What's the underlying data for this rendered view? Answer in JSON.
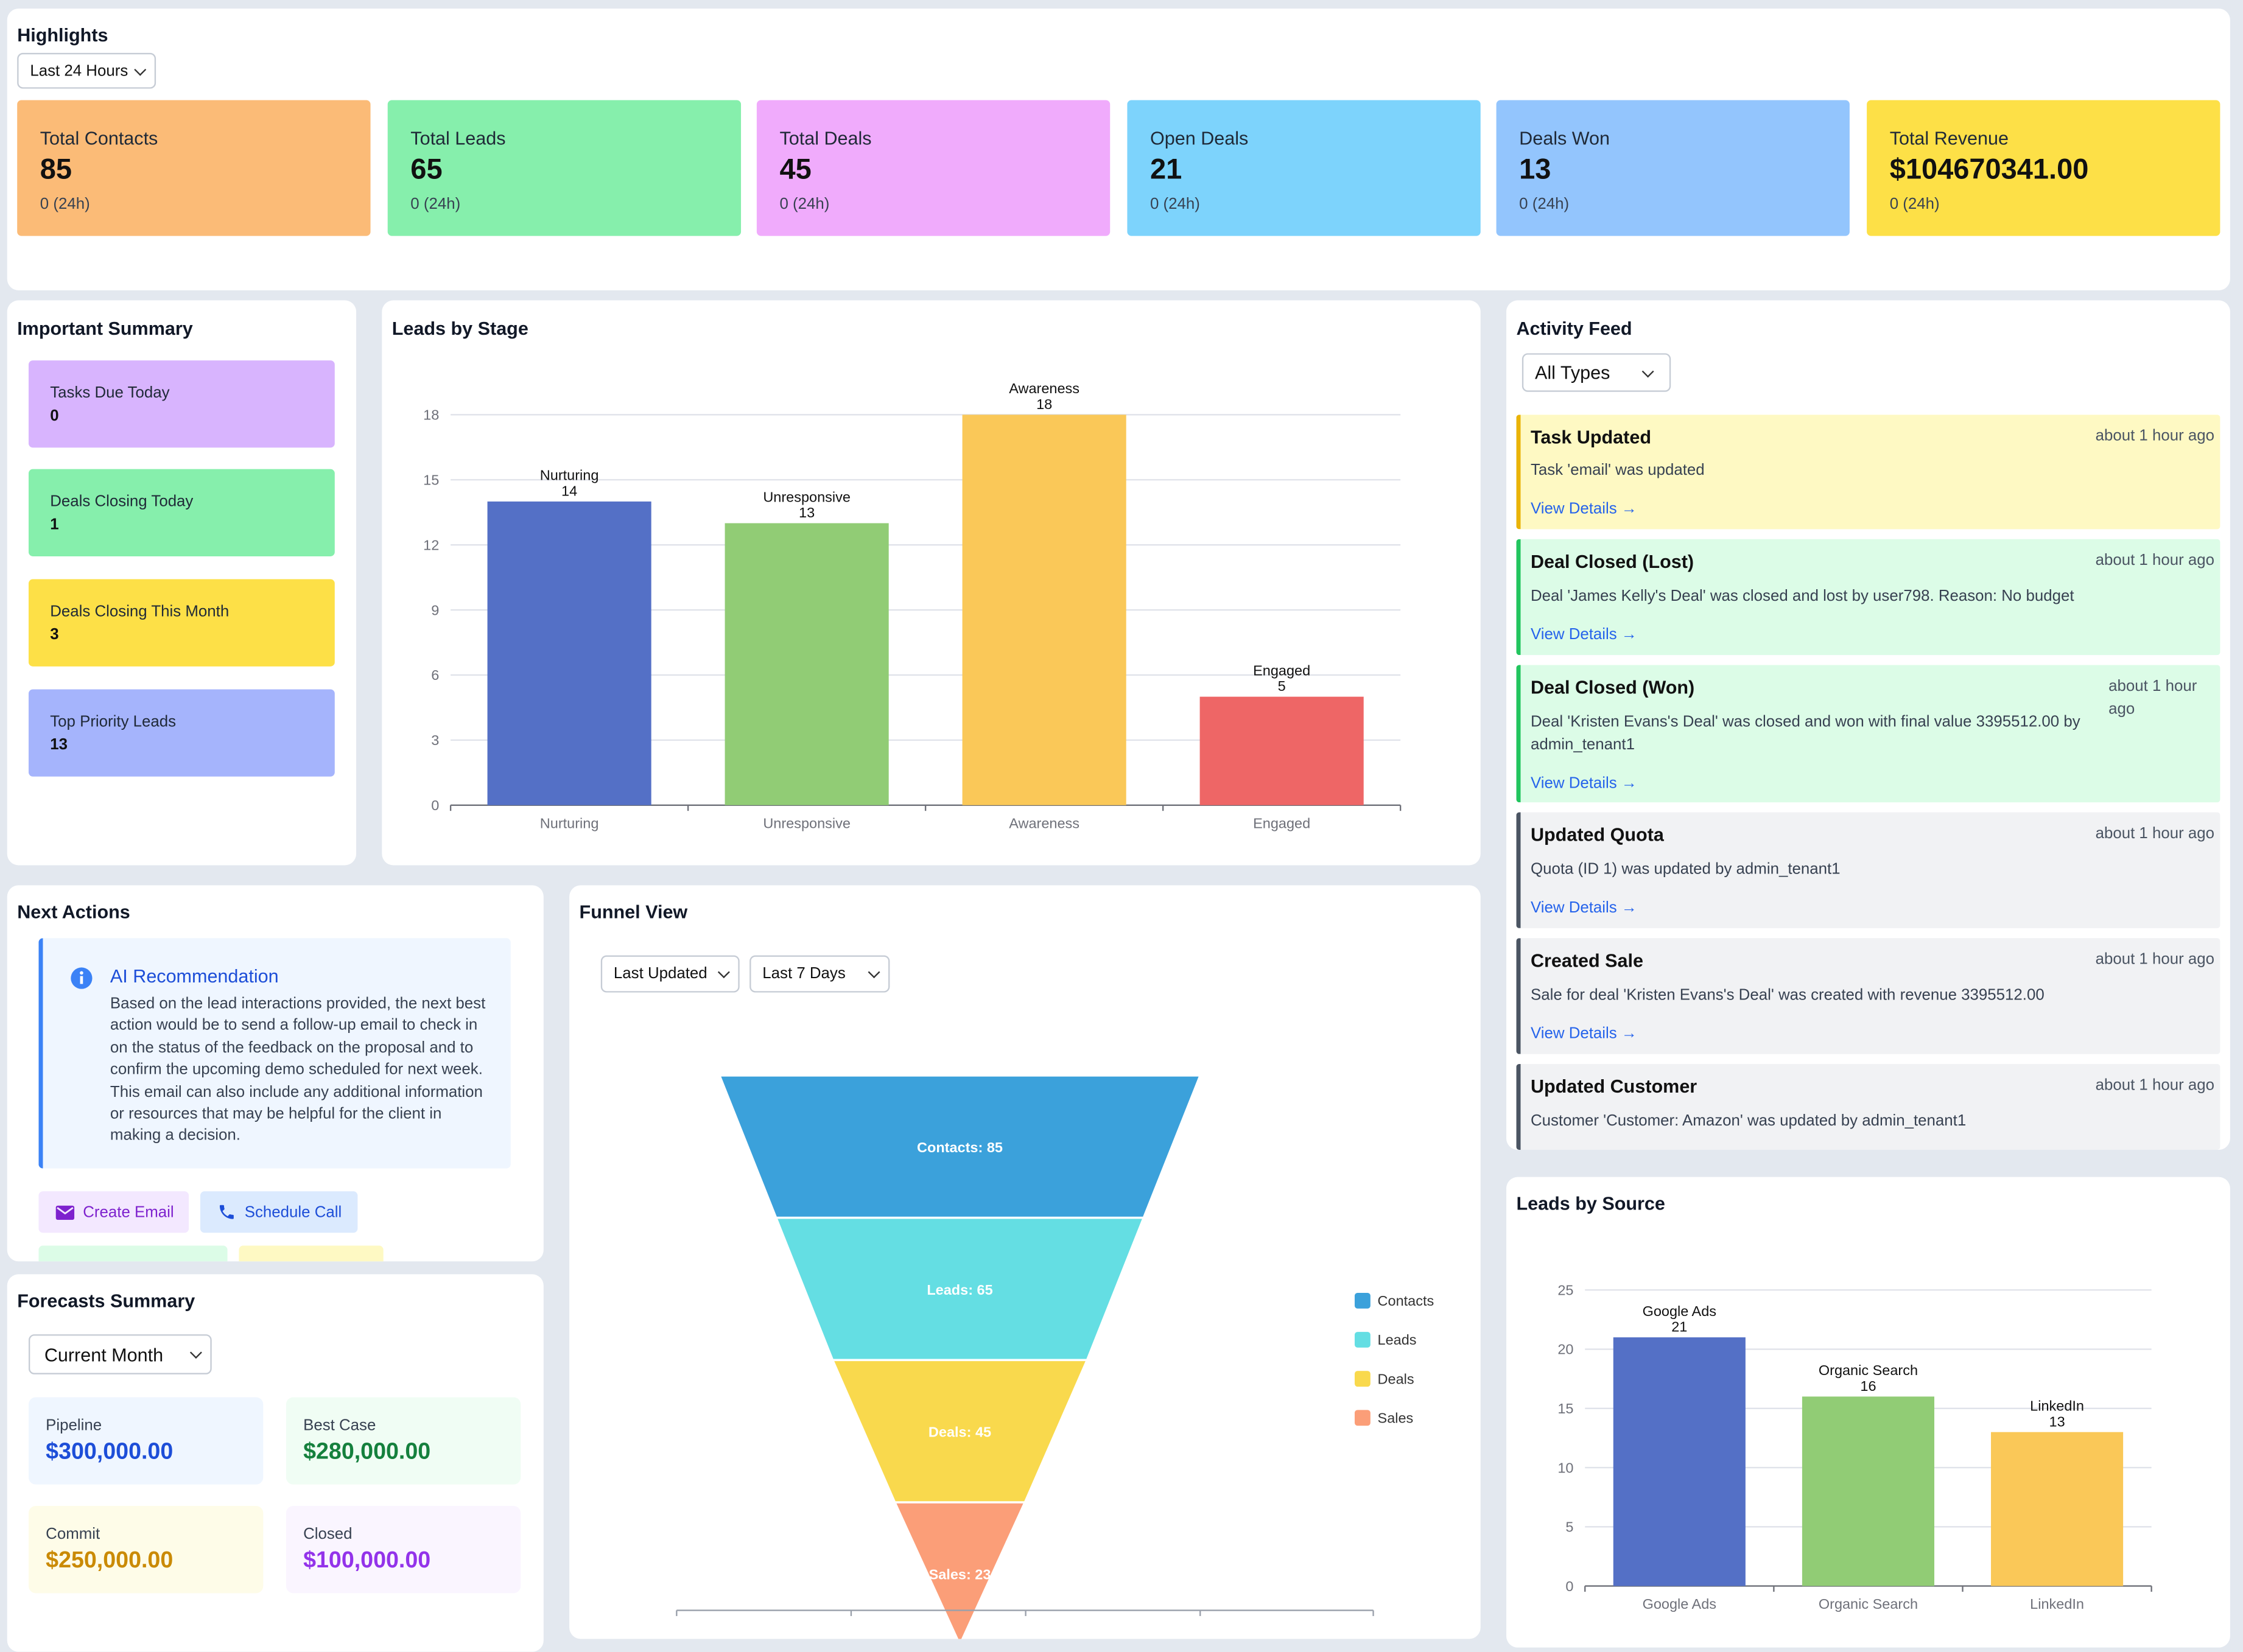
{
  "highlights": {
    "title": "Highlights",
    "range": "Last 24 Hours",
    "stats": [
      {
        "label": "Total Contacts",
        "value": "85",
        "sub": "0 (24h)",
        "color": "#fbbb77"
      },
      {
        "label": "Total Leads",
        "value": "65",
        "sub": "0 (24h)",
        "color": "#86efac"
      },
      {
        "label": "Total Deals",
        "value": "45",
        "sub": "0 (24h)",
        "color": "#f0abfc"
      },
      {
        "label": "Open Deals",
        "value": "21",
        "sub": "0 (24h)",
        "color": "#7dd3fc"
      },
      {
        "label": "Deals Won",
        "value": "13",
        "sub": "0 (24h)",
        "color": "#93c5fd"
      },
      {
        "label": "Total Revenue",
        "value": "$104670341.00",
        "sub": "0 (24h)",
        "color": "#fde047"
      }
    ]
  },
  "summary": {
    "title": "Important Summary",
    "items": [
      {
        "label": "Tasks Due Today",
        "value": "0",
        "color": "#d8b4fe"
      },
      {
        "label": "Deals Closing Today",
        "value": "1",
        "color": "#86efac"
      },
      {
        "label": "Deals Closing This Month",
        "value": "3",
        "color": "#fde047"
      },
      {
        "label": "Top Priority Leads",
        "value": "13",
        "color": "#a5b4fc"
      }
    ]
  },
  "stage_chart": {
    "title": "Leads by Stage",
    "chart_data": {
      "type": "bar",
      "categories": [
        "Nurturing",
        "Unresponsive",
        "Awareness",
        "Engaged"
      ],
      "values": [
        14,
        13,
        18,
        5
      ],
      "colors": [
        "#5470c6",
        "#91cc75",
        "#fac858",
        "#ee6666"
      ],
      "yticks": [
        0,
        3,
        6,
        9,
        12,
        15,
        18
      ],
      "ylim": [
        0,
        18
      ]
    }
  },
  "activity": {
    "title": "Activity Feed",
    "filter": "All Types",
    "link_label": "View Details →",
    "items": [
      {
        "title": "Task Updated",
        "time": "about 1 hour ago",
        "desc": "Task 'email' was updated",
        "bg": "#fef9c3",
        "border": "#eab308"
      },
      {
        "title": "Deal Closed (Lost)",
        "time": "about 1 hour ago",
        "desc": "Deal 'James Kelly's Deal' was closed and lost by user798. Reason: No budget",
        "bg": "#dcfce7",
        "border": "#22c55e"
      },
      {
        "title": "Deal Closed (Won)",
        "time": "about 1 hour ago",
        "desc": "Deal 'Kristen Evans's Deal' was closed and won with final value 3395512.00 by admin_tenant1",
        "bg": "#dcfce7",
        "border": "#22c55e"
      },
      {
        "title": "Updated Quota",
        "time": "about 1 hour ago",
        "desc": "Quota (ID 1) was updated by admin_tenant1",
        "bg": "#f1f2f4",
        "border": "#4b5563"
      },
      {
        "title": "Created Sale",
        "time": "about 1 hour ago",
        "desc": "Sale for deal 'Kristen Evans's Deal' was created with revenue 3395512.00",
        "bg": "#f1f2f4",
        "border": "#4b5563"
      },
      {
        "title": "Updated Customer",
        "time": "about 1 hour ago",
        "desc": "Customer 'Customer: Amazon' was updated by admin_tenant1",
        "bg": "#f1f2f4",
        "border": "#4b5563"
      }
    ]
  },
  "next_actions": {
    "title": "Next Actions",
    "ai_title": "AI Recommendation",
    "ai_text": "Based on the lead interactions provided, the next best action would be to send a follow-up email to check in on the status of the feedback on the proposal and to confirm the upcoming demo scheduled for next week. This email can also include any additional information or resources that may be helpful for the client in making a decision.",
    "create_email": "Create Email",
    "schedule_call": "Schedule Call"
  },
  "funnel": {
    "title": "Funnel View",
    "sort": "Last Updated",
    "range": "Last 7 Days",
    "chart_data": {
      "type": "funnel",
      "stages": [
        {
          "name": "Contacts",
          "value": 85,
          "label": "Contacts: 85",
          "color": "#3ba1db"
        },
        {
          "name": "Leads",
          "value": 65,
          "label": "Leads: 65",
          "color": "#64dee3"
        },
        {
          "name": "Deals",
          "value": 45,
          "label": "Deals: 45",
          "color": "#f9d94d"
        },
        {
          "name": "Sales",
          "value": 23,
          "label": "Sales: 23",
          "color": "#fb9e78"
        }
      ]
    }
  },
  "forecasts": {
    "title": "Forecasts Summary",
    "period": "Current Month",
    "items": [
      {
        "label": "Pipeline",
        "value": "$300,000.00",
        "bg": "#eff6ff",
        "color": "#1d4ed8"
      },
      {
        "label": "Best Case",
        "value": "$280,000.00",
        "bg": "#f0fdf4",
        "color": "#15803d"
      },
      {
        "label": "Commit",
        "value": "$250,000.00",
        "bg": "#fefce8",
        "color": "#ca8a04"
      },
      {
        "label": "Closed",
        "value": "$100,000.00",
        "bg": "#faf5ff",
        "color": "#9333ea"
      }
    ]
  },
  "source_chart": {
    "title": "Leads by Source",
    "chart_data": {
      "type": "bar",
      "categories": [
        "Google Ads",
        "Organic Search",
        "LinkedIn"
      ],
      "values": [
        21,
        16,
        13
      ],
      "colors": [
        "#5470c6",
        "#91cc75",
        "#fac858"
      ],
      "yticks": [
        0,
        5,
        10,
        15,
        20,
        25
      ],
      "ylim": [
        0,
        25
      ]
    }
  }
}
